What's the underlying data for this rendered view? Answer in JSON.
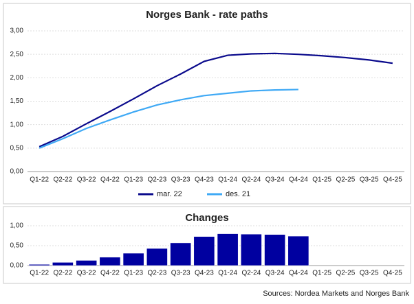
{
  "chart_data": [
    {
      "type": "line",
      "title": "Norges Bank - rate paths",
      "categories": [
        "Q1-22",
        "Q2-22",
        "Q3-22",
        "Q4-22",
        "Q1-23",
        "Q2-23",
        "Q3-23",
        "Q4-23",
        "Q1-24",
        "Q2-24",
        "Q3-24",
        "Q4-24",
        "Q1-25",
        "Q2-25",
        "Q3-25",
        "Q4-25"
      ],
      "series": [
        {
          "name": "mar. 22",
          "color": "#0a0a8c",
          "values": [
            0.53,
            0.75,
            1.02,
            1.28,
            1.55,
            1.83,
            2.08,
            2.35,
            2.48,
            2.51,
            2.52,
            2.5,
            2.47,
            2.43,
            2.38,
            2.31
          ]
        },
        {
          "name": "des. 21",
          "color": "#3fa9f5",
          "values": [
            0.5,
            0.7,
            0.92,
            1.1,
            1.27,
            1.42,
            1.53,
            1.62,
            1.67,
            1.72,
            1.74,
            1.75,
            null,
            null,
            null,
            null
          ]
        }
      ],
      "ylim": [
        0,
        3
      ],
      "yticks": [
        {
          "value": 0,
          "label": "0,00"
        },
        {
          "value": 0.5,
          "label": "0,50"
        },
        {
          "value": 1,
          "label": "1,00"
        },
        {
          "value": 1.5,
          "label": "1,50"
        },
        {
          "value": 2,
          "label": "2,00"
        },
        {
          "value": 2.5,
          "label": "2,50"
        },
        {
          "value": 3,
          "label": "3,00"
        }
      ],
      "legend": "bottom"
    },
    {
      "type": "bar",
      "title": "Changes",
      "categories": [
        "Q1-22",
        "Q2-22",
        "Q3-22",
        "Q4-22",
        "Q1-23",
        "Q2-23",
        "Q3-23",
        "Q4-23",
        "Q1-24",
        "Q2-24",
        "Q3-24",
        "Q4-24",
        "Q1-25",
        "Q2-25",
        "Q3-25",
        "Q4-25"
      ],
      "values": [
        0.03,
        0.08,
        0.13,
        0.21,
        0.31,
        0.43,
        0.57,
        0.73,
        0.8,
        0.79,
        0.78,
        0.74,
        null,
        null,
        null,
        null
      ],
      "color": "#0000a0",
      "ylim": [
        0,
        1
      ],
      "yticks": [
        {
          "value": 0,
          "label": "0,00"
        },
        {
          "value": 0.5,
          "label": "0,50"
        },
        {
          "value": 1,
          "label": "1,00"
        }
      ]
    }
  ],
  "source": "Sources: Nordea Markets and Norges Bank"
}
